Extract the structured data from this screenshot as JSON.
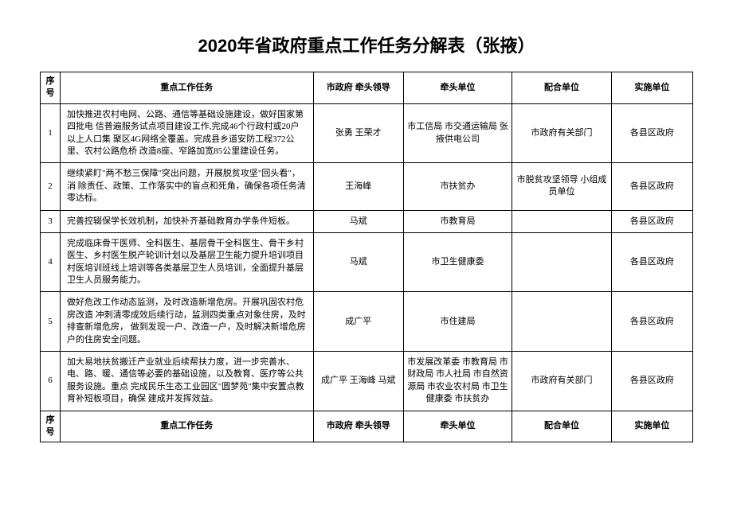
{
  "title": "2020年省政府重点工作任务分解表（张掖）",
  "headers": {
    "seq": "序号",
    "task": "重点工作任务",
    "leader": "市政府 牵头领导",
    "lead_unit": "牵头单位",
    "coop_unit": "配合单位",
    "impl_unit": "实施单位"
  },
  "rows": [
    {
      "seq": "1",
      "task": "加快推进农村电网、公路、通信等基础设施建设，做好国家第四批电 信普遍服务试点项目建设工作,完成46个行政村或20户以上人口集 聚区4G网络全覆盖。完成县乡道安防工程372公里、农村公路危桥 改造8座、窄路加宽85公里建设任务。",
      "leader": "张勇 王荣才",
      "lead_unit": "市工信局 市交通运输局 张掖供电公司",
      "coop_unit": "市政府有关部门",
      "impl_unit": "各县区政府"
    },
    {
      "seq": "2",
      "task": "继续紧盯\"两不愁三保障\"突出问题，开展脱贫攻坚\"回头看\"，消 除责任、政策、工作落实中的盲点和死角，确保各项任务清零达标。",
      "leader": "王海峰",
      "lead_unit": "市扶贫办",
      "coop_unit": "市脱贫攻坚领导 小组成员单位",
      "impl_unit": "各县区政府"
    },
    {
      "seq": "3",
      "task": "完善控辍保学长效机制，加快补齐基础教育办学条件短板。",
      "leader": "马斌",
      "lead_unit": "市教育局",
      "coop_unit": "",
      "impl_unit": "各县区政府"
    },
    {
      "seq": "4",
      "task": "完成临床骨干医师、全科医生、基层骨干全科医生、骨干乡村医生、乡村医生脱产轮训计划以及基层卫生能力提升培训项目村医培训班线上培训等各类基层卫生人员培训，全面提升基层卫生人员服务能力。",
      "leader": "马斌",
      "lead_unit": "市卫生健康委",
      "coop_unit": "",
      "impl_unit": "各县区政府"
    },
    {
      "seq": "5",
      "task": "做好危改工作动态监测，及时改造新增危房。开展巩固农村危房改造 冲刺清零成效后续行动，监测四类重点对象住房，及时排查新增危房， 做到发现一户、改造一户，及时解决新增危房户的住房安全问题。",
      "leader": "成广平",
      "lead_unit": "市住建局",
      "coop_unit": "",
      "impl_unit": "各县区政府"
    },
    {
      "seq": "6",
      "task": "加大易地扶贫搬迁产业就业后续帮扶力度，进一步完善水、电、路、暖、通信等必要的基础设施，以及教育、医疗等公共服务设施。重点 完成民乐生态工业园区\"圆梦苑\"集中安置点教育补短板项目，确保 建成并发挥效益。",
      "leader": "成广平 王海峰 马斌",
      "lead_unit": "市发展改革委 市教育局 市财政局 市人社局\n市自然资源局 市农业农村局 市卫生健康委 市扶贫办",
      "coop_unit": "市政府有关部门",
      "impl_unit": "各县区政府"
    }
  ]
}
